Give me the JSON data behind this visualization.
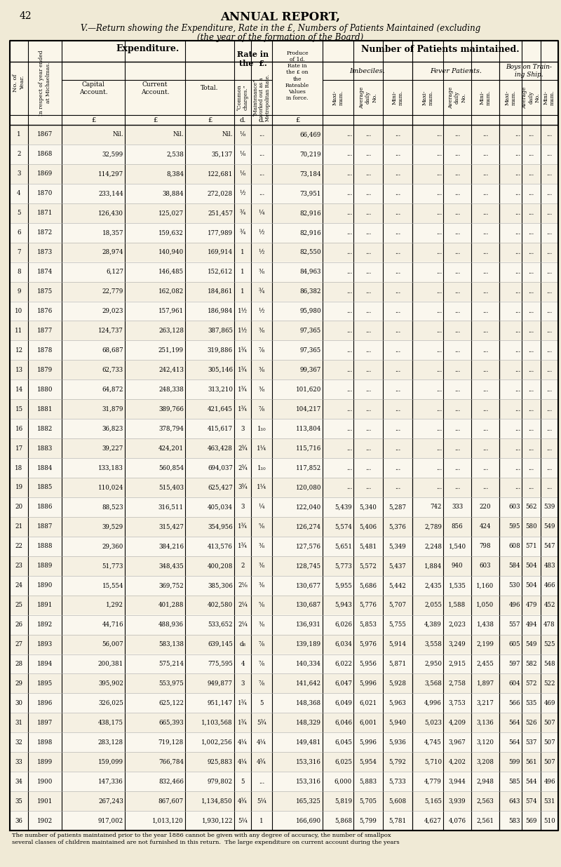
{
  "page_num": "42",
  "title1": "ANNUAL REPORT,",
  "title2": "V.—Return showing the Expenditure, Rate in the £, Numbers of Patients Maintained (excluding",
  "title3": "(the year of the formation of the Board)",
  "bg_color": "#f0ead6",
  "table_bg": "#faf6ea",
  "rows": [
    [
      1,
      "1867",
      "Nil.",
      "Nil.",
      "Nil.",
      "⅛",
      "...",
      "66,469",
      "...",
      "...",
      "...",
      "...",
      "...",
      "...",
      "...",
      "...",
      "..."
    ],
    [
      2,
      "1868",
      "32,599",
      "2,538",
      "35,137",
      "⅛",
      "...",
      "70,219",
      "...",
      "...",
      "...",
      "...",
      "...",
      "...",
      "...",
      "...",
      "..."
    ],
    [
      3,
      "1869",
      "114,297",
      "8,384",
      "122,681",
      "⅛",
      "...",
      "73,184",
      "...",
      "...",
      "...",
      "...",
      "...",
      "...",
      "...",
      "...",
      "..."
    ],
    [
      4,
      "1870",
      "233,144",
      "38,884",
      "272,028",
      "½",
      "...",
      "73,951",
      "...",
      "...",
      "...",
      "...",
      "...",
      "...",
      "...",
      "...",
      "..."
    ],
    [
      5,
      "1871",
      "126,430",
      "125,027",
      "251,457",
      "¾",
      "¼",
      "82,916",
      "...",
      "...",
      "...",
      "...",
      "...",
      "...",
      "...",
      "...",
      "..."
    ],
    [
      6,
      "1872",
      "18,357",
      "159,632",
      "177,989",
      "¾",
      "½",
      "82,916",
      "...",
      "...",
      "...",
      "...",
      "...",
      "...",
      "...",
      "...",
      "..."
    ],
    [
      7,
      "1873",
      "28,974",
      "140,940",
      "169,914",
      "1",
      "½",
      "82,550",
      "...",
      "...",
      "...",
      "...",
      "...",
      "...",
      "...",
      "...",
      "..."
    ],
    [
      8,
      "1874",
      "6,127",
      "146,485",
      "152,612",
      "1",
      "⅜",
      "84,963",
      "...",
      "...",
      "...",
      "...",
      "...",
      "...",
      "...",
      "...",
      "..."
    ],
    [
      9,
      "1875",
      "22,779",
      "162,082",
      "184,861",
      "1",
      "¾",
      "86,382",
      "...",
      "...",
      "...",
      "...",
      "...",
      "...",
      "...",
      "...",
      "..."
    ],
    [
      10,
      "1876",
      "29,023",
      "157,961",
      "186,984",
      "1½",
      "½",
      "95,980",
      "...",
      "...",
      "...",
      "...",
      "...",
      "...",
      "...",
      "...",
      "..."
    ],
    [
      11,
      "1877",
      "124,737",
      "263,128",
      "387,865",
      "1½",
      "⅜",
      "97,365",
      "...",
      "...",
      "...",
      "...",
      "...",
      "...",
      "...",
      "...",
      "..."
    ],
    [
      12,
      "1878",
      "68,687",
      "251,199",
      "319,886",
      "1¾",
      "⅞",
      "97,365",
      "...",
      "...",
      "...",
      "...",
      "...",
      "...",
      "...",
      "...",
      "..."
    ],
    [
      13,
      "1879",
      "62,733",
      "242,413",
      "305,146",
      "1¾",
      "⅜",
      "99,367",
      "...",
      "...",
      "...",
      "...",
      "...",
      "...",
      "...",
      "...",
      "..."
    ],
    [
      14,
      "1880",
      "64,872",
      "248,338",
      "313,210",
      "1¾",
      "⅜",
      "101,620",
      "...",
      "...",
      "...",
      "...",
      "...",
      "...",
      "...",
      "...",
      "..."
    ],
    [
      15,
      "1881",
      "31,879",
      "389,766",
      "421,645",
      "1¾",
      "⅞",
      "104,217",
      "...",
      "...",
      "...",
      "...",
      "...",
      "...",
      "...",
      "...",
      "..."
    ],
    [
      16,
      "1882",
      "36,823",
      "378,794",
      "415,617",
      "3",
      "1₁₀",
      "113,804",
      "...",
      "...",
      "...",
      "...",
      "...",
      "...",
      "...",
      "...",
      "..."
    ],
    [
      17,
      "1883",
      "39,227",
      "424,201",
      "463,428",
      "2¾",
      "1¼",
      "115,716",
      "...",
      "...",
      "...",
      "...",
      "...",
      "...",
      "...",
      "...",
      "..."
    ],
    [
      18,
      "1884",
      "133,183",
      "560,854",
      "694,037",
      "2¾",
      "1₁₀",
      "117,852",
      "...",
      "...",
      "...",
      "...",
      "...",
      "...",
      "...",
      "...",
      "..."
    ],
    [
      19,
      "1885",
      "110,024",
      "515,403",
      "625,427",
      "3¾",
      "1¼",
      "120,080",
      "...",
      "...",
      "...",
      "...",
      "...",
      "...",
      "...",
      "...",
      "..."
    ],
    [
      20,
      "1886",
      "88,523",
      "316,511",
      "405,034",
      "3",
      "¼",
      "122,040",
      "5,439",
      "5,340",
      "5,287",
      "742",
      "333",
      "220",
      "603",
      "562",
      "539"
    ],
    [
      21,
      "1887",
      "39,529",
      "315,427",
      "354,956",
      "1¾",
      "⅝",
      "126,274",
      "5,574",
      "5,406",
      "5,376",
      "2,789",
      "856",
      "424",
      "595",
      "580",
      "549"
    ],
    [
      22,
      "1888",
      "29,360",
      "384,216",
      "413,576",
      "1¾",
      "⅜",
      "127,576",
      "5,651",
      "5,481",
      "5,349",
      "2,248",
      "1,540",
      "798",
      "608",
      "571",
      "547"
    ],
    [
      23,
      "1889",
      "51,773",
      "348,435",
      "400,208",
      "2",
      "⅜",
      "128,745",
      "5,773",
      "5,572",
      "5,437",
      "1,884",
      "940",
      "603",
      "584",
      "504",
      "483"
    ],
    [
      24,
      "1890",
      "15,554",
      "369,752",
      "385,306",
      "2⅛",
      "⅜",
      "130,677",
      "5,955",
      "5,686",
      "5,442",
      "2,435",
      "1,535",
      "1,160",
      "530",
      "504",
      "466"
    ],
    [
      25,
      "1891",
      "1,292",
      "401,288",
      "402,580",
      "2¼",
      "⅝",
      "130,687",
      "5,943",
      "5,776",
      "5,707",
      "2,055",
      "1,588",
      "1,050",
      "496",
      "479",
      "452"
    ],
    [
      26,
      "1892",
      "44,716",
      "488,936",
      "533,652",
      "2¼",
      "⅜",
      "136,931",
      "6,026",
      "5,853",
      "5,755",
      "4,389",
      "2,023",
      "1,438",
      "557",
      "494",
      "478"
    ],
    [
      27,
      "1893",
      "56,007",
      "583,138",
      "639,145",
      "d₈",
      "⅞",
      "139,189",
      "6,034",
      "5,976",
      "5,914",
      "3,558",
      "3,249",
      "2,199",
      "605",
      "549",
      "525"
    ],
    [
      28,
      "1894",
      "200,381",
      "575,214",
      "775,595",
      "4",
      "⅞",
      "140,334",
      "6,022",
      "5,956",
      "5,871",
      "2,950",
      "2,915",
      "2,455",
      "597",
      "582",
      "548"
    ],
    [
      29,
      "1895",
      "395,902",
      "553,975",
      "949,877",
      "3",
      "⅞",
      "141,642",
      "6,047",
      "5,996",
      "5,928",
      "3,568",
      "2,758",
      "1,897",
      "604",
      "572",
      "522"
    ],
    [
      30,
      "1896",
      "326,025",
      "625,122",
      "951,147",
      "1¾",
      "5",
      "148,368",
      "6,049",
      "6,021",
      "5,963",
      "4,996",
      "3,753",
      "3,217",
      "566",
      "535",
      "469"
    ],
    [
      31,
      "1897",
      "438,175",
      "665,393",
      "1,103,568",
      "1¾",
      "5¾",
      "148,329",
      "6,046",
      "6,001",
      "5,940",
      "5,023",
      "4,209",
      "3,136",
      "564",
      "526",
      "507"
    ],
    [
      32,
      "1898",
      "283,128",
      "719,128",
      "1,002,256",
      "4¼",
      "4¼",
      "149,481",
      "6,045",
      "5,996",
      "5,936",
      "4,745",
      "3,967",
      "3,120",
      "564",
      "537",
      "507"
    ],
    [
      33,
      "1899",
      "159,099",
      "766,784",
      "925,883",
      "4¼",
      "4¾",
      "153,316",
      "6,025",
      "5,954",
      "5,792",
      "5,710",
      "4,202",
      "3,208",
      "599",
      "561",
      "507"
    ],
    [
      34,
      "1900",
      "147,336",
      "832,466",
      "979,802",
      "5",
      "...",
      "153,316",
      "6,000",
      "5,883",
      "5,733",
      "4,779",
      "3,944",
      "2,948",
      "585",
      "544",
      "496"
    ],
    [
      35,
      "1901",
      "267,243",
      "867,607",
      "1,134,850",
      "4¾",
      "5¼",
      "165,325",
      "5,819",
      "5,705",
      "5,608",
      "5,165",
      "3,939",
      "2,563",
      "643",
      "574",
      "531"
    ],
    [
      36,
      "1902",
      "917,002",
      "1,013,120",
      "1,930,122",
      "5¼",
      "1",
      "166,690",
      "5,868",
      "5,799",
      "5,781",
      "4,627",
      "4,076",
      "2,561",
      "583",
      "569",
      "510"
    ]
  ],
  "footnote1": "The number of patients maintained prior to the year 1886 cannot be given with any degree of accuracy, the number of smallpox",
  "footnote2": "several classes of children maintained are not furnished in this return.  The large expenditure on current account during the years"
}
